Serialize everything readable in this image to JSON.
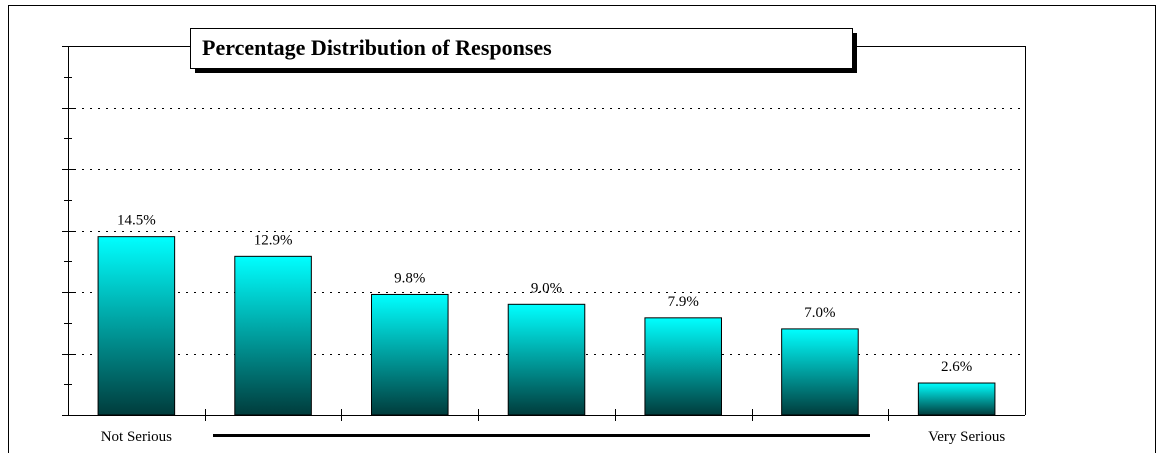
{
  "chart_data": {
    "type": "bar",
    "title": "Percentage Distribution of Responses",
    "categories": [
      "Not Serious",
      null,
      null,
      null,
      null,
      null,
      "Very Serious"
    ],
    "values": [
      14.5,
      12.9,
      9.8,
      9.0,
      7.9,
      7.0,
      2.6
    ],
    "value_labels": [
      "14.5%",
      "12.9%",
      "9.8%",
      "9.0%",
      "7.9%",
      "7.0%",
      "2.6%"
    ],
    "color": "#00ffff",
    "ylim": [
      0,
      30
    ],
    "yticks": [
      0,
      5,
      10,
      15,
      20,
      25,
      30
    ],
    "grid": true
  }
}
